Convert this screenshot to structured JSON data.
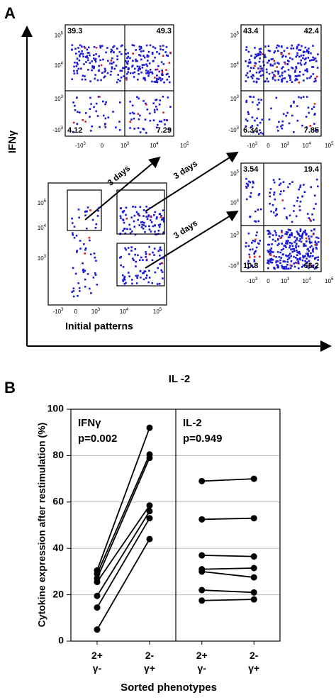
{
  "panel_a": {
    "label": "A",
    "y_axis_label": "IFNγ",
    "x_axis_label": "IL -2",
    "initial_label": "Initial patterns",
    "arrow_labels": [
      "3 days",
      "3 days",
      "3 days"
    ],
    "x_tick_labels": [
      {
        "base": "-10",
        "exp": "3"
      },
      {
        "base": "0"
      },
      {
        "base": "10",
        "exp": "3"
      },
      {
        "base": "10",
        "exp": "4"
      },
      {
        "base": "10",
        "exp": "5"
      }
    ],
    "y_tick_labels": [
      {
        "base": "10",
        "exp": "5"
      },
      {
        "base": "10",
        "exp": "4"
      },
      {
        "base": "10",
        "exp": "3"
      },
      {
        "base": "-10",
        "exp": "3"
      }
    ],
    "plots": [
      {
        "quadrants": [
          39.3,
          49.3,
          4.12,
          7.29
        ]
      },
      {
        "quadrants": [
          43.4,
          42.4,
          6.34,
          7.85
        ]
      },
      {
        "quadrants": [
          3.54,
          19.4,
          10.8,
          66.2
        ]
      }
    ]
  },
  "panel_b": {
    "label": "B"
  },
  "chart_data": [
    {
      "type": "line",
      "title": "IFNγ",
      "subtitle": "p=0.002",
      "ylabel": "Cytokine expression  after restimulation (%)",
      "xlabel": "Sorted phenotypes",
      "categories": [
        "2+ γ-",
        "2- γ+"
      ],
      "color": "#000000",
      "ylim": [
        0,
        100
      ],
      "yticks": [
        0,
        20,
        40,
        60,
        80,
        100
      ],
      "grid": true,
      "series": [
        {
          "values": [
            30.5,
            92
          ]
        },
        {
          "values": [
            29,
            80.5
          ]
        },
        {
          "values": [
            27,
            79
          ]
        },
        {
          "values": [
            25.5,
            58.5
          ]
        },
        {
          "values": [
            19.5,
            56
          ]
        },
        {
          "values": [
            14.5,
            53
          ]
        },
        {
          "values": [
            5,
            44
          ]
        }
      ]
    },
    {
      "type": "line",
      "title": "IL-2",
      "subtitle": "p=0.949",
      "categories": [
        "2+ γ-",
        "2- γ+"
      ],
      "color": "#000000",
      "ylim": [
        0,
        100
      ],
      "series": [
        {
          "values": [
            69,
            70
          ]
        },
        {
          "values": [
            52.5,
            53
          ]
        },
        {
          "values": [
            37,
            36.5
          ]
        },
        {
          "values": [
            31,
            31.5
          ]
        },
        {
          "values": [
            30,
            27.5
          ]
        },
        {
          "values": [
            22,
            21
          ]
        },
        {
          "values": [
            17.5,
            18
          ]
        }
      ]
    }
  ]
}
